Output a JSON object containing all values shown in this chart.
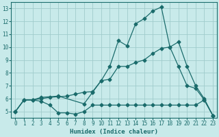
{
  "xlabel": "Humidex (Indice chaleur)",
  "xlim": [
    -0.5,
    23.5
  ],
  "ylim": [
    4.5,
    13.5
  ],
  "yticks": [
    5,
    6,
    7,
    8,
    9,
    10,
    11,
    12,
    13
  ],
  "xticks": [
    0,
    1,
    2,
    3,
    4,
    5,
    6,
    7,
    8,
    9,
    10,
    11,
    12,
    13,
    14,
    15,
    16,
    17,
    18,
    19,
    20,
    21,
    22,
    23
  ],
  "bg_color": "#c8eaea",
  "grid_color": "#a0cccc",
  "line_color": "#1a6b6b",
  "line1_x": [
    0,
    1,
    2,
    3,
    4,
    5,
    6,
    7,
    8,
    9,
    10,
    11,
    12,
    13,
    14,
    15,
    16,
    17,
    18,
    19,
    20,
    21,
    22,
    23
  ],
  "line1_y": [
    5.0,
    5.9,
    5.9,
    5.8,
    5.5,
    4.9,
    4.9,
    4.8,
    5.0,
    5.5,
    5.5,
    5.5,
    5.5,
    5.5,
    5.5,
    5.5,
    5.5,
    5.5,
    5.5,
    5.5,
    5.5,
    5.5,
    5.9,
    4.7
  ],
  "line2_x": [
    0,
    1,
    2,
    3,
    4,
    5,
    6,
    7,
    8,
    9,
    10,
    11,
    12,
    13,
    14,
    15,
    16,
    17,
    18,
    19,
    20,
    21,
    22,
    23
  ],
  "line2_y": [
    5.0,
    5.9,
    5.9,
    6.0,
    6.1,
    6.15,
    6.2,
    6.35,
    6.5,
    6.55,
    7.4,
    7.5,
    8.5,
    8.5,
    8.8,
    9.0,
    9.5,
    9.9,
    10.0,
    8.5,
    7.0,
    6.8,
    5.9,
    4.7
  ],
  "line3_x": [
    0,
    1,
    2,
    3,
    5,
    8,
    9,
    10,
    11,
    12,
    13,
    14,
    15,
    16,
    17,
    18,
    19,
    20,
    21,
    22,
    23
  ],
  "line3_y": [
    5.0,
    5.9,
    5.9,
    6.1,
    6.2,
    5.6,
    6.5,
    7.4,
    8.5,
    10.5,
    10.1,
    11.8,
    12.2,
    12.8,
    13.1,
    10.0,
    10.4,
    8.5,
    7.0,
    6.0,
    4.7
  ]
}
